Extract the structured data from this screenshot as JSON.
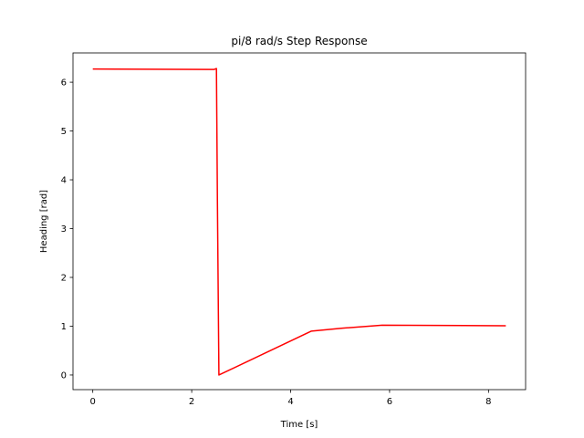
{
  "chart_data": {
    "type": "line",
    "title": "pi/8 rad/s Step Response",
    "xlabel": "Time [s]",
    "ylabel": "Heading [rad]",
    "xlim": [
      -0.4,
      8.75
    ],
    "ylim": [
      -0.3,
      6.6
    ],
    "xticks": [
      0,
      2,
      4,
      6,
      8
    ],
    "yticks": [
      0,
      1,
      2,
      3,
      4,
      5,
      6
    ],
    "grid": false,
    "legend": "none",
    "series": [
      {
        "color": "#ff0000",
        "x": [
          0,
          2.45,
          2.5,
          2.52,
          2.55,
          4.42,
          5.05,
          5.85,
          8.35
        ],
        "y": [
          6.27,
          6.26,
          6.28,
          3.5,
          0.0,
          0.9,
          0.96,
          1.02,
          1.01
        ]
      }
    ]
  }
}
